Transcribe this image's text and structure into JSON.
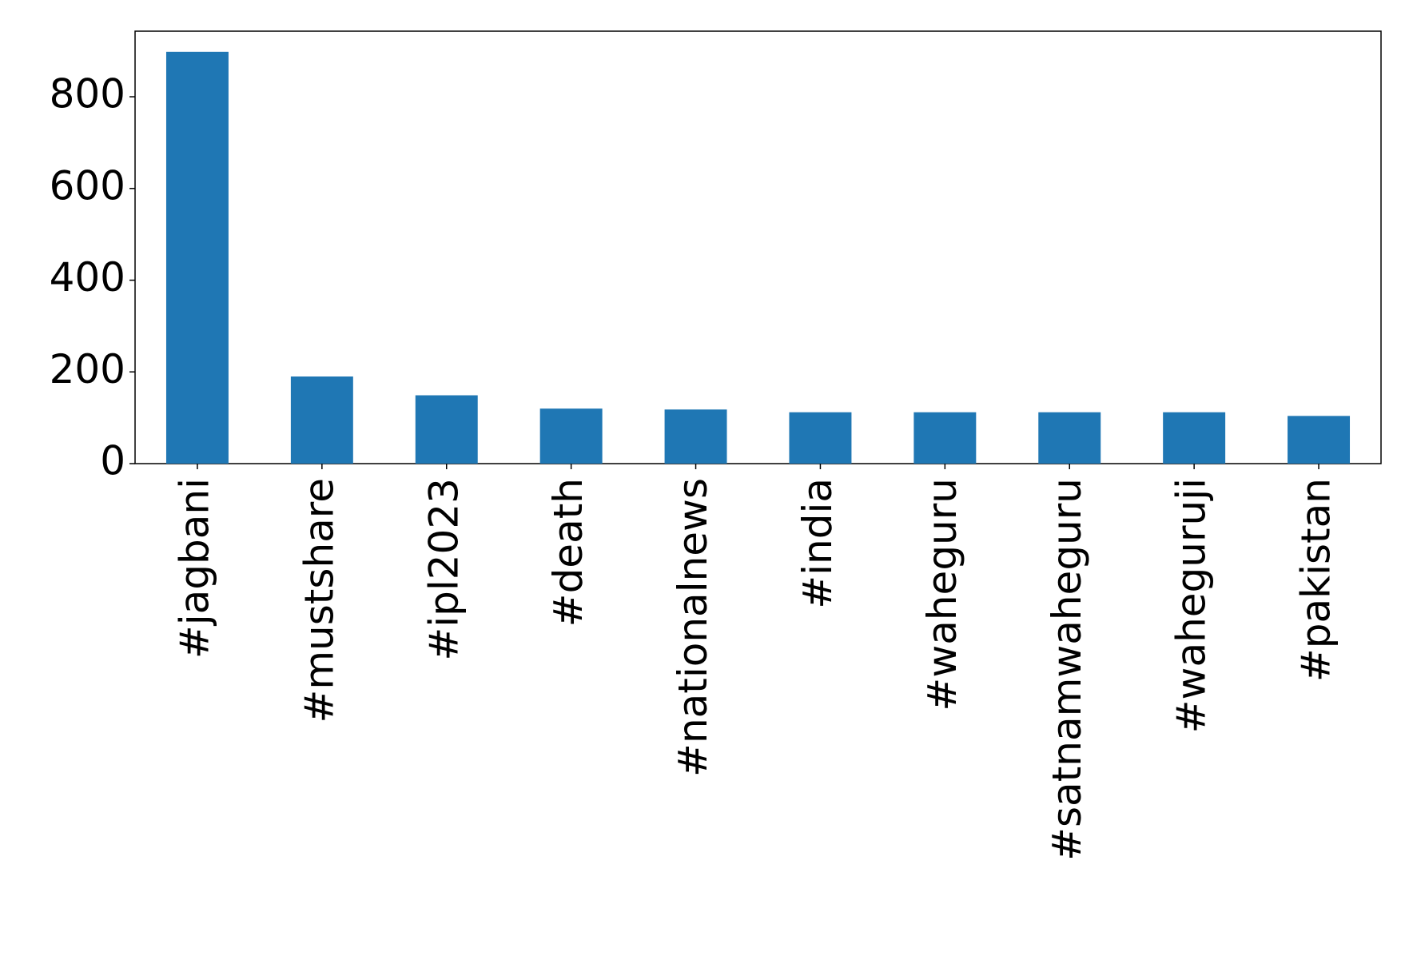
{
  "chart_data": {
    "type": "bar",
    "categories": [
      "#jagbani",
      "#mustshare",
      "#ipl2023",
      "#death",
      "#nationalnews",
      "#india",
      "#waheguru",
      "#satnamwaheguru",
      "#waheguruji",
      "#pakistan"
    ],
    "values": [
      898,
      190,
      149,
      120,
      118,
      112,
      112,
      112,
      112,
      104
    ],
    "color": "#1f77b4",
    "ylim": [
      0,
      943
    ],
    "yticks": [
      0,
      200,
      400,
      600,
      800
    ],
    "grid": false
  }
}
